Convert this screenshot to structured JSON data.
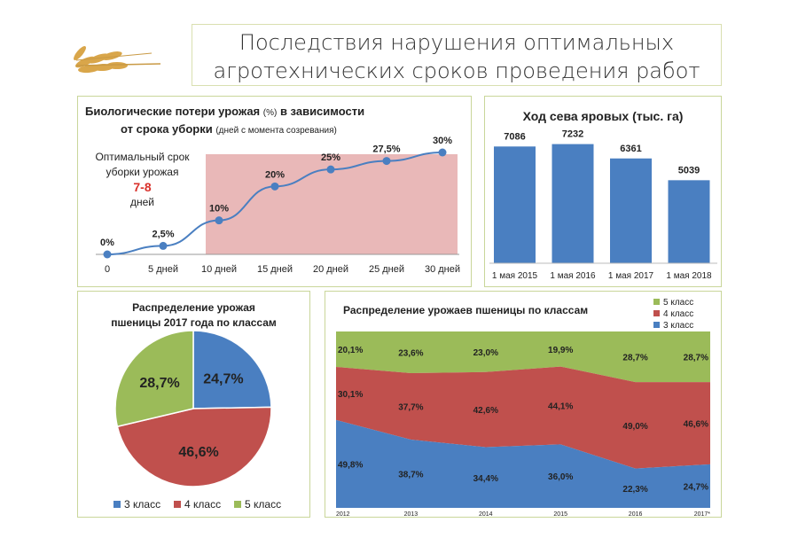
{
  "header": {
    "title_line1": "Последствия нарушения оптимальных",
    "title_line2": "агротехнических сроков проведения работ"
  },
  "losses": {
    "title_line1": "Биологические потери урожая",
    "title_unit": "(%)",
    "title_line1_rest": "в зависимости",
    "title_line2": "от срока уборки",
    "title_note": "(дней с момента созревания)",
    "optimal_line1": "Оптимальный срок",
    "optimal_line2": "уборки урожая",
    "optimal_value": "7-8",
    "optimal_unit": "дней"
  },
  "sowing": {
    "title": "Ход сева яровых (тыс. га)"
  },
  "pie": {
    "title_line1": "Распределение урожая",
    "title_line2": "пшеницы 2017 года по классам"
  },
  "stack": {
    "title": "Распределение урожаев пшеницы по классам"
  },
  "chart_data": [
    {
      "type": "line",
      "categories": [
        "0",
        "5 дней",
        "10 дней",
        "15 дней",
        "20 дней",
        "25 дней",
        "30 дней"
      ],
      "values": [
        0,
        2.5,
        10,
        20,
        25,
        27.5,
        30
      ],
      "data_labels": [
        "0%",
        "2,5%",
        "10%",
        "20%",
        "25%",
        "27,5%",
        "30%"
      ],
      "color": "#4a7fc1",
      "shaded_region_from": "10 дней",
      "shade_color": "#e9b8b8",
      "ylim": [
        0,
        36
      ]
    },
    {
      "type": "bar",
      "categories": [
        "1 мая 2015",
        "1 мая 2016",
        "1 мая 2017",
        "1 мая 2018"
      ],
      "values": [
        7086,
        7232,
        6361,
        5039
      ],
      "color": "#4a7fc1",
      "ylim": [
        0,
        8500
      ]
    },
    {
      "type": "pie",
      "categories": [
        "3 класс",
        "4 класс",
        "5 класс"
      ],
      "values": [
        24.7,
        46.6,
        28.7
      ],
      "data_labels": [
        "24,7%",
        "46,6%",
        "28,7%"
      ],
      "colors": [
        "#4a7fc1",
        "#c0504d",
        "#9bbb59"
      ],
      "legend": "bottom"
    },
    {
      "type": "area",
      "stacked_percent": true,
      "x": [
        "2012",
        "2013",
        "2014",
        "2015",
        "2016",
        "2017*"
      ],
      "series": [
        {
          "name": "3 класс",
          "values": [
            49.8,
            38.7,
            34.4,
            36.0,
            22.3,
            24.7
          ],
          "labels": [
            "49,8%",
            "38,7%",
            "34,4%",
            "36,0%",
            "22,3%",
            "24,7%"
          ],
          "color": "#4a7fc1"
        },
        {
          "name": "4 класс",
          "values": [
            30.1,
            37.7,
            42.6,
            44.1,
            49.0,
            46.6
          ],
          "labels": [
            "30,1%",
            "37,7%",
            "42,6%",
            "44,1%",
            "49,0%",
            "46,6%"
          ],
          "color": "#c0504d"
        },
        {
          "name": "5 класс",
          "values": [
            20.1,
            23.6,
            23.0,
            19.9,
            28.7,
            28.7
          ],
          "labels": [
            "20,1%",
            "23,6%",
            "23,0%",
            "19,9%",
            "28,7%",
            "28,7%"
          ],
          "color": "#9bbb59"
        }
      ],
      "legend": "top-right"
    }
  ]
}
